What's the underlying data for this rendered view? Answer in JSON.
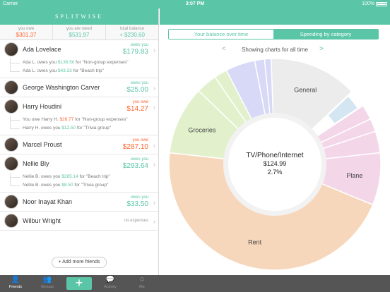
{
  "status_bar": {
    "carrier": "Carrier",
    "time": "3:07 PM",
    "battery": "100%"
  },
  "brand": "SPLITWISE",
  "summary": [
    {
      "label": "you owe",
      "value": "$301.37",
      "tone": "orange"
    },
    {
      "label": "you are owed",
      "value": "$531.97",
      "tone": "green"
    },
    {
      "label": "total balance",
      "value": "+ $230.60",
      "tone": "green"
    }
  ],
  "friends": [
    {
      "name": "Ada Lovelace",
      "owe_label": "owes you",
      "amount": "$179.83",
      "tone": "green",
      "subs": [
        {
          "pre": "Ada L. owes you ",
          "amt": "$136.50",
          "post": " for \"Non-group expenses\"",
          "tone": "green"
        },
        {
          "pre": "Ada L. owes you ",
          "amt": "$43.33",
          "post": " for \"Beach trip\"",
          "tone": "green"
        }
      ]
    },
    {
      "name": "George Washington Carver",
      "owe_label": "owes you",
      "amount": "$25.00",
      "tone": "green",
      "subs": []
    },
    {
      "name": "Harry Houdini",
      "owe_label": "you owe",
      "amount": "$14.27",
      "tone": "orange",
      "subs": [
        {
          "pre": "You owe Harry H. ",
          "amt": "$26.77",
          "post": " for \"Non-group expenses\"",
          "tone": "orange"
        },
        {
          "pre": "Harry H. owes you ",
          "amt": "$12.50",
          "post": " for \"Trivia group\"",
          "tone": "green"
        }
      ]
    },
    {
      "name": "Marcel Proust",
      "owe_label": "you owe",
      "amount": "$287.10",
      "tone": "orange",
      "subs": []
    },
    {
      "name": "Nellie Bly",
      "owe_label": "owes you",
      "amount": "$293.64",
      "tone": "green",
      "subs": [
        {
          "pre": "Nellie B. owes you ",
          "amt": "$285.14",
          "post": " for \"Beach trip\"",
          "tone": "green"
        },
        {
          "pre": "Nellie B. owes you ",
          "amt": "$8.50",
          "post": " for \"Trivia group\"",
          "tone": "green"
        }
      ]
    },
    {
      "name": "Noor Inayat Khan",
      "owe_label": "owes you",
      "amount": "$33.50",
      "tone": "green",
      "subs": []
    },
    {
      "name": "Wilbur Wright",
      "owe_label": "",
      "amount": "",
      "no_expenses": "no expenses",
      "tone": "gray",
      "subs": []
    }
  ],
  "add_more_label": "+ Add more friends",
  "tabs": [
    {
      "label": "Friends",
      "icon": "person-icon",
      "glyph": "👤"
    },
    {
      "label": "Groups",
      "icon": "group-icon",
      "glyph": "👥"
    },
    {
      "label": "Activity",
      "icon": "activity-icon",
      "glyph": "💬"
    },
    {
      "label": "Me",
      "icon": "me-icon",
      "glyph": "☺"
    }
  ],
  "add_button_label": "+",
  "segments": {
    "left": "Your balance over time",
    "right": "Spending by category"
  },
  "period_label": "Showing charts for all time",
  "nav_arrows": {
    "prev": "<",
    "next": ">"
  },
  "center": {
    "title": "TV/Phone/Internet",
    "amount": "$124.99",
    "percent": "2.7%"
  },
  "accent_color": "#5bc5a7",
  "owe_color": "#ff652f",
  "chart_data": {
    "type": "pie",
    "slices": [
      {
        "label": "General",
        "percent": 13.5,
        "color": "#ececec"
      },
      {
        "label": "TV/Phone/Internet",
        "percent": 2.7,
        "color": "#d3e6f2",
        "exploded": true
      },
      {
        "label": "",
        "percent": 2.3,
        "color": "#f4d6e9"
      },
      {
        "label": "",
        "percent": 2.0,
        "color": "#f4d6e9"
      },
      {
        "label": "",
        "percent": 3.3,
        "color": "#f4d6e9"
      },
      {
        "label": "Plane",
        "percent": 8.0,
        "color": "#f4d6e9"
      },
      {
        "label": "Rent",
        "percent": 45.5,
        "color": "#f7d7bb"
      },
      {
        "label": "Groceries",
        "percent": 10.5,
        "color": "#e2f1cc"
      },
      {
        "label": "",
        "percent": 3.2,
        "color": "#e2f1cc"
      },
      {
        "label": "",
        "percent": 2.0,
        "color": "#e2f1cc"
      },
      {
        "label": "",
        "percent": 4.5,
        "color": "#d7d9f7"
      },
      {
        "label": "",
        "percent": 1.5,
        "color": "#d7d9f7"
      },
      {
        "label": "",
        "percent": 1.0,
        "color": "#d7d9f7"
      }
    ]
  }
}
